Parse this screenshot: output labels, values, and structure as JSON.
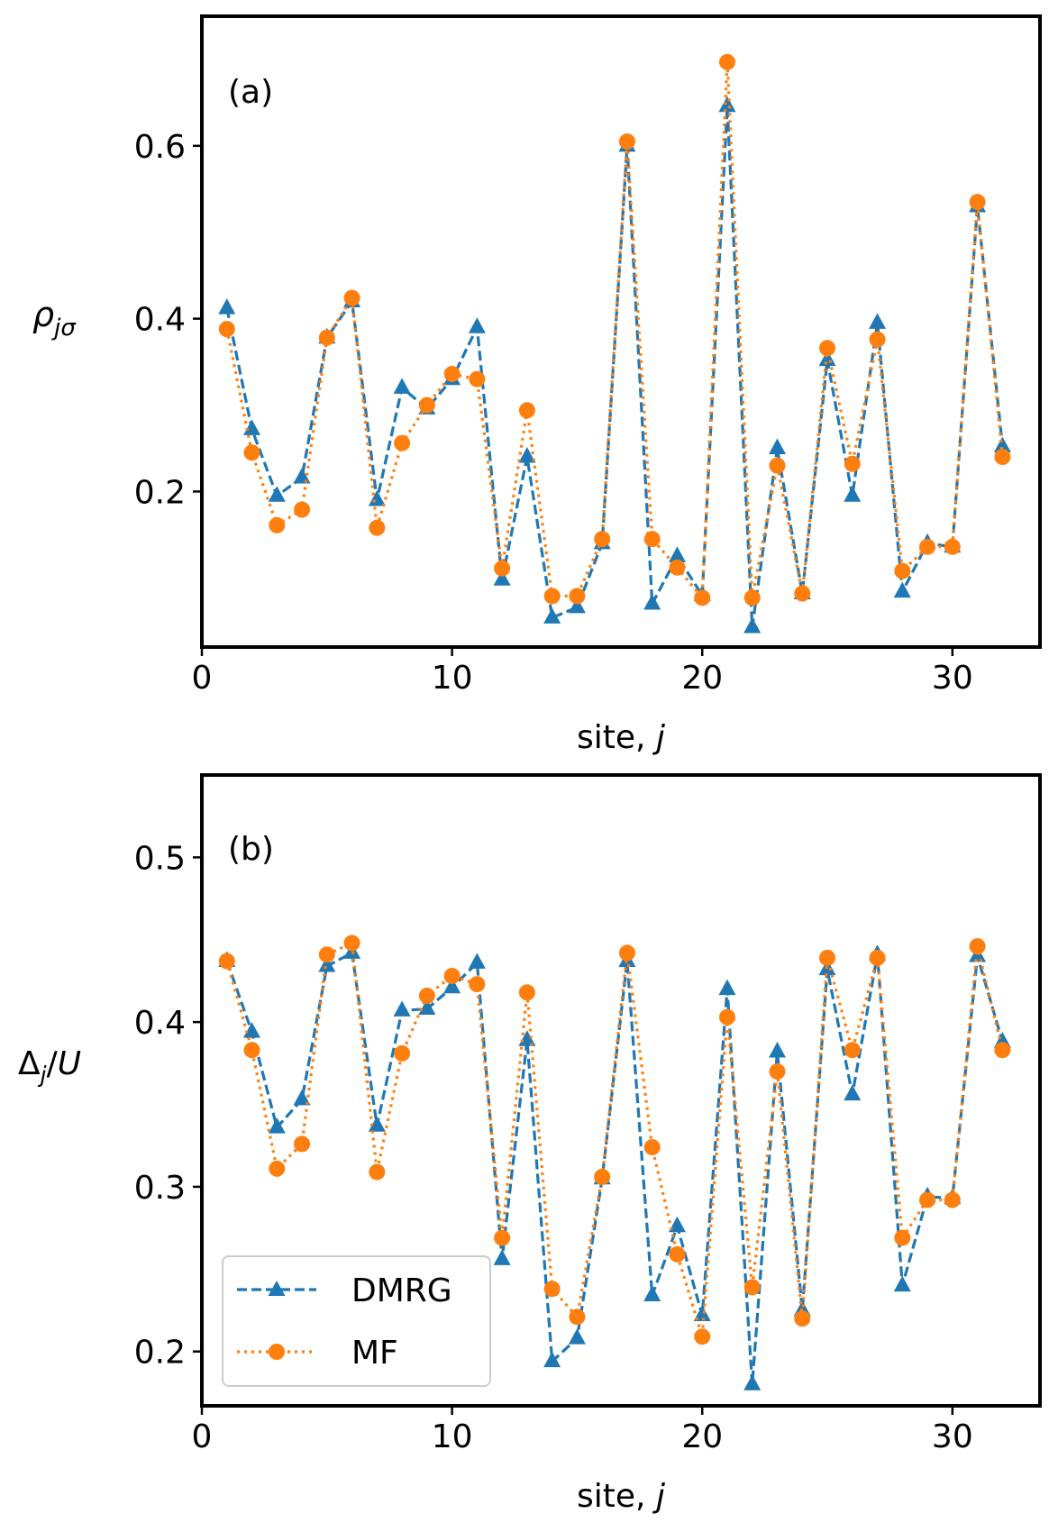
{
  "chart_data": [
    {
      "type": "line",
      "panel_label": "(a)",
      "xlabel": "site, j",
      "ylabel": "ρjσ",
      "xlim": [
        0,
        33.5
      ],
      "ylim": [
        0.02,
        0.75
      ],
      "xticks": [
        0,
        10,
        20,
        30
      ],
      "yticks": [
        0.2,
        0.4,
        0.6
      ],
      "xtick_labels": [
        "0",
        "10",
        "20",
        "30"
      ],
      "ytick_labels": [
        "0.2",
        "0.4",
        "0.6"
      ],
      "x": [
        1,
        2,
        3,
        4,
        5,
        6,
        7,
        8,
        9,
        10,
        11,
        12,
        13,
        14,
        15,
        16,
        17,
        18,
        19,
        20,
        21,
        22,
        23,
        24,
        25,
        26,
        27,
        28,
        29,
        30,
        31,
        32
      ],
      "series": [
        {
          "name": "DMRG",
          "color": "#1f77b4",
          "marker": "triangle",
          "linestyle": "dashed",
          "values": [
            0.412,
            0.272,
            0.195,
            0.216,
            0.378,
            0.42,
            0.19,
            0.32,
            0.296,
            0.33,
            0.39,
            0.098,
            0.24,
            0.054,
            0.066,
            0.14,
            0.6,
            0.07,
            0.125,
            0.08,
            0.646,
            0.043,
            0.25,
            0.082,
            0.352,
            0.195,
            0.395,
            0.084,
            0.14,
            0.136,
            0.53,
            0.252
          ]
        },
        {
          "name": "MF",
          "color": "#ff7f0e",
          "marker": "circle",
          "linestyle": "dotted",
          "values": [
            0.388,
            0.245,
            0.161,
            0.179,
            0.378,
            0.424,
            0.158,
            0.256,
            0.3,
            0.336,
            0.33,
            0.111,
            0.294,
            0.079,
            0.079,
            0.145,
            0.605,
            0.145,
            0.112,
            0.077,
            0.697,
            0.077,
            0.23,
            0.082,
            0.366,
            0.232,
            0.376,
            0.108,
            0.136,
            0.136,
            0.535,
            0.24
          ]
        }
      ],
      "legend": "none"
    },
    {
      "type": "line",
      "panel_label": "(b)",
      "xlabel": "site, j",
      "ylabel": "Δj/U",
      "xlim": [
        0,
        33.5
      ],
      "ylim": [
        0.167,
        0.55
      ],
      "xticks": [
        0,
        10,
        20,
        30
      ],
      "yticks": [
        0.2,
        0.3,
        0.4,
        0.5
      ],
      "xtick_labels": [
        "0",
        "10",
        "20",
        "30"
      ],
      "ytick_labels": [
        "0.2",
        "0.3",
        "0.4",
        "0.5"
      ],
      "x": [
        1,
        2,
        3,
        4,
        5,
        6,
        7,
        8,
        9,
        10,
        11,
        12,
        13,
        14,
        15,
        16,
        17,
        18,
        19,
        20,
        21,
        22,
        23,
        24,
        25,
        26,
        27,
        28,
        29,
        30,
        31,
        32
      ],
      "series": [
        {
          "name": "DMRG",
          "color": "#1f77b4",
          "marker": "triangle",
          "linestyle": "dashed",
          "values": [
            0.437,
            0.394,
            0.336,
            0.353,
            0.434,
            0.442,
            0.337,
            0.407,
            0.408,
            0.421,
            0.436,
            0.256,
            0.389,
            0.194,
            0.208,
            0.305,
            0.437,
            0.234,
            0.276,
            0.222,
            0.42,
            0.18,
            0.382,
            0.225,
            0.432,
            0.356,
            0.441,
            0.24,
            0.294,
            0.293,
            0.44,
            0.388
          ]
        },
        {
          "name": "MF",
          "color": "#ff7f0e",
          "marker": "circle",
          "linestyle": "dotted",
          "values": [
            0.437,
            0.383,
            0.311,
            0.326,
            0.441,
            0.448,
            0.309,
            0.381,
            0.416,
            0.428,
            0.423,
            0.269,
            0.418,
            0.238,
            0.221,
            0.306,
            0.442,
            0.324,
            0.259,
            0.209,
            0.403,
            0.239,
            0.37,
            0.22,
            0.439,
            0.383,
            0.439,
            0.269,
            0.292,
            0.292,
            0.446,
            0.383
          ]
        }
      ],
      "legend": "lower-left"
    }
  ]
}
